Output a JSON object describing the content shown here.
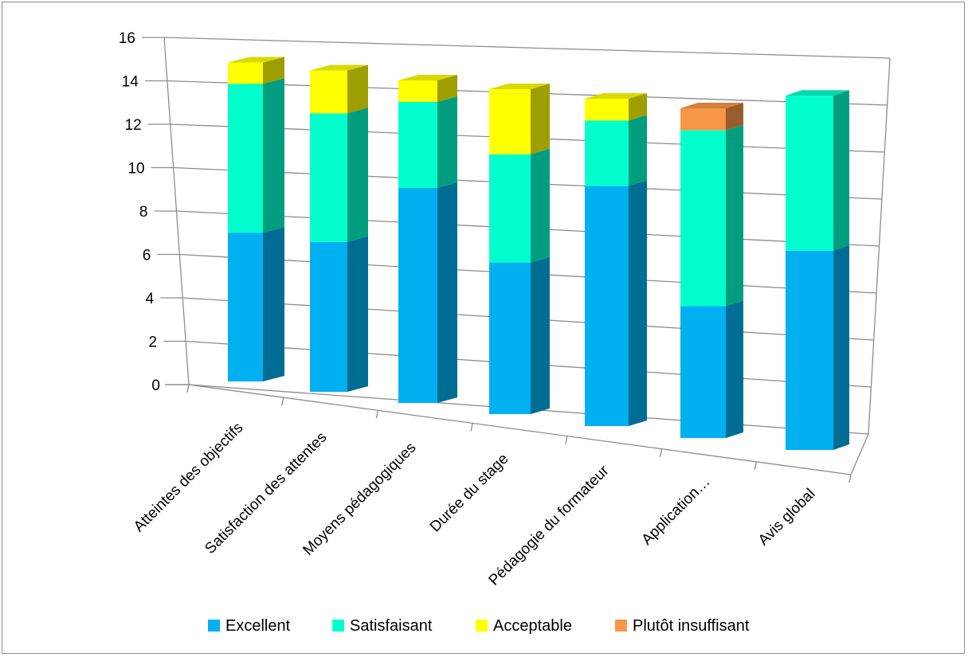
{
  "chart_data": {
    "type": "bar",
    "stacked": true,
    "style": "3d-column",
    "categories": [
      "Atteintes des objectifs",
      "Satisfaction des attentes",
      "Moyens pédagogiques",
      "Durée du stage",
      "Pédagogie du formateur",
      "Application…",
      "Avis  global"
    ],
    "series": [
      {
        "name": "Excellent",
        "color": "#00b0f0",
        "values": [
          7,
          7,
          10,
          7,
          11,
          6,
          9
        ]
      },
      {
        "name": "Satisfaisant",
        "color": "#00ffcc",
        "values": [
          7,
          6,
          4,
          5,
          3,
          8,
          7
        ]
      },
      {
        "name": "Acceptable",
        "color": "#ffff00",
        "values": [
          1,
          2,
          1,
          3,
          1,
          0,
          0
        ]
      },
      {
        "name": "Plutôt insuffisant",
        "color": "#f79646",
        "values": [
          0,
          0,
          0,
          0,
          0,
          1,
          0
        ]
      }
    ],
    "yticks": [
      "0",
      "2",
      "4",
      "6",
      "8",
      "10",
      "12",
      "14",
      "16"
    ],
    "ylim": [
      0,
      16
    ],
    "grid": true,
    "legend": "bottom",
    "title": "",
    "xlabel": "",
    "ylabel": ""
  }
}
